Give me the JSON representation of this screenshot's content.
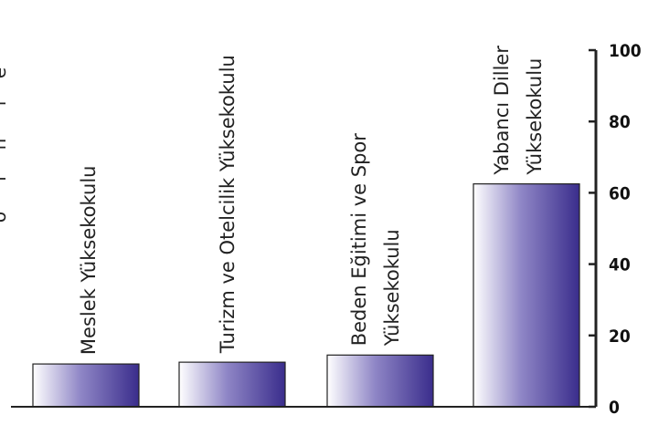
{
  "left_edge_glyphs": [
    "e",
    "r",
    "n",
    "l",
    "o"
  ],
  "chart_data": {
    "type": "bar",
    "categories": [
      [
        "Meslek Yüksekokulu"
      ],
      [
        "Turizm ve Otelcilik Yüksekokulu"
      ],
      [
        "Beden Eğitimi ve Spor",
        "Yüksekokulu"
      ],
      [
        "Yabancı Diller",
        "Yüksekokulu"
      ]
    ],
    "values": [
      12,
      12.5,
      14.5,
      62.5
    ],
    "ylim": [
      0,
      100
    ],
    "yticks": [
      0,
      20,
      40,
      60,
      80,
      100
    ],
    "yaxis_position": "right",
    "grid": false,
    "legend": "none",
    "colors": {
      "bar_dark": "#3a2d8c",
      "bar_light": "#ffffff",
      "axis": "#222222"
    }
  }
}
